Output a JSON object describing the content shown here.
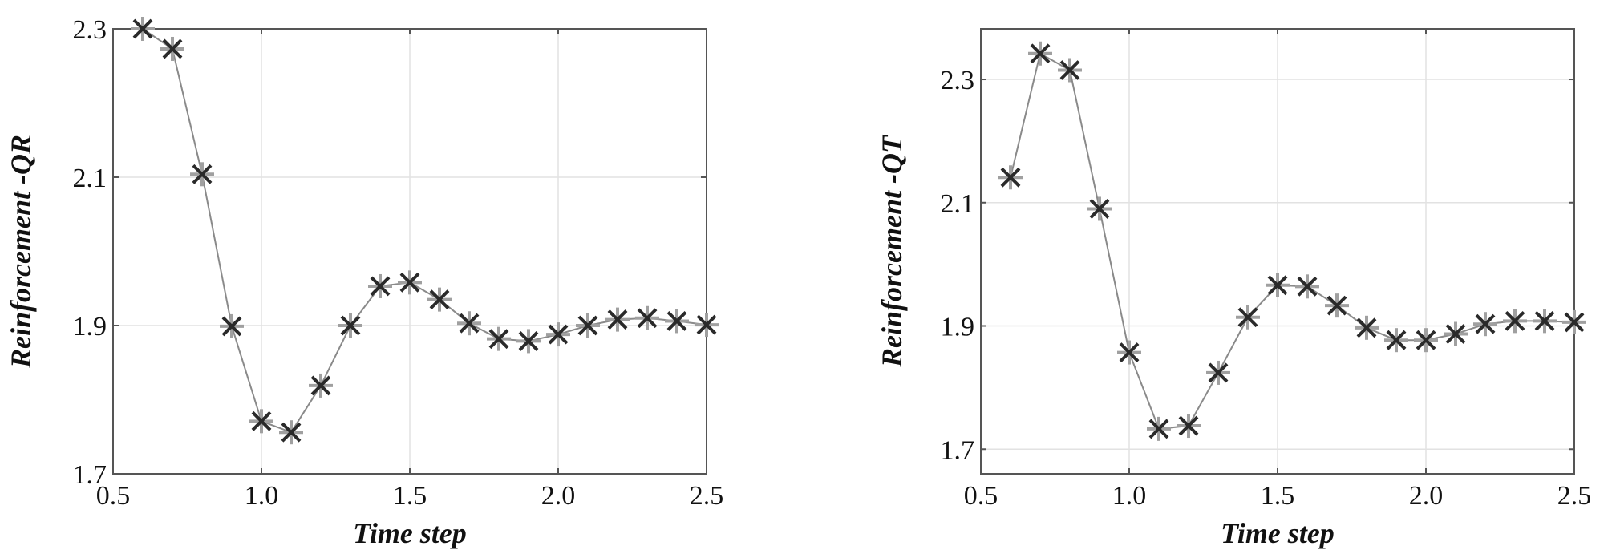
{
  "chart_data": [
    {
      "type": "line",
      "xlabel": "Time step",
      "ylabel": "Reinforcement -QR",
      "xlim": [
        0.5,
        2.5
      ],
      "ylim": [
        1.7,
        2.3
      ],
      "xticks": [
        "0.5",
        "1.0",
        "1.5",
        "2.0",
        "2.5"
      ],
      "yticks": [
        "1.7",
        "1.9",
        "2.1",
        "2.3"
      ],
      "grid": true,
      "x": [
        0.6,
        0.7,
        0.8,
        0.9,
        1.0,
        1.1,
        1.2,
        1.3,
        1.4,
        1.5,
        1.6,
        1.7,
        1.8,
        1.9,
        2.0,
        2.1,
        2.2,
        2.3,
        2.4,
        2.5
      ],
      "values": [
        2.3,
        2.273,
        2.104,
        1.899,
        1.771,
        1.756,
        1.819,
        1.9,
        1.953,
        1.958,
        1.935,
        1.903,
        1.882,
        1.879,
        1.888,
        1.9,
        1.908,
        1.91,
        1.906,
        1.901
      ],
      "marker": "asterisk",
      "colors": {
        "line": "#8a8a8a",
        "marker_dark": "#2a2a2a",
        "marker_light": "#a0a0a0",
        "grid": "#e2e2e2",
        "axis": "#555555"
      }
    },
    {
      "type": "line",
      "xlabel": "Time step",
      "ylabel": "Reinforcement -QT",
      "xlim": [
        0.5,
        2.5
      ],
      "ylim": [
        1.66,
        2.382
      ],
      "xticks": [
        "0.5",
        "1.0",
        "1.5",
        "2.0",
        "2.5"
      ],
      "yticks": [
        "1.7",
        "1.9",
        "2.1",
        "2.3"
      ],
      "grid": true,
      "x": [
        0.6,
        0.7,
        0.8,
        0.9,
        1.0,
        1.1,
        1.2,
        1.3,
        1.4,
        1.5,
        1.6,
        1.7,
        1.8,
        1.9,
        2.0,
        2.1,
        2.2,
        2.3,
        2.4,
        2.5
      ],
      "values": [
        2.141,
        2.342,
        2.315,
        2.09,
        1.857,
        1.733,
        1.738,
        1.824,
        1.914,
        1.966,
        1.964,
        1.933,
        1.897,
        1.877,
        1.877,
        1.887,
        1.903,
        1.908,
        1.908,
        1.906
      ],
      "marker": "asterisk",
      "colors": {
        "line": "#8a8a8a",
        "marker_dark": "#2a2a2a",
        "marker_light": "#a0a0a0",
        "grid": "#e2e2e2",
        "axis": "#555555"
      }
    }
  ]
}
